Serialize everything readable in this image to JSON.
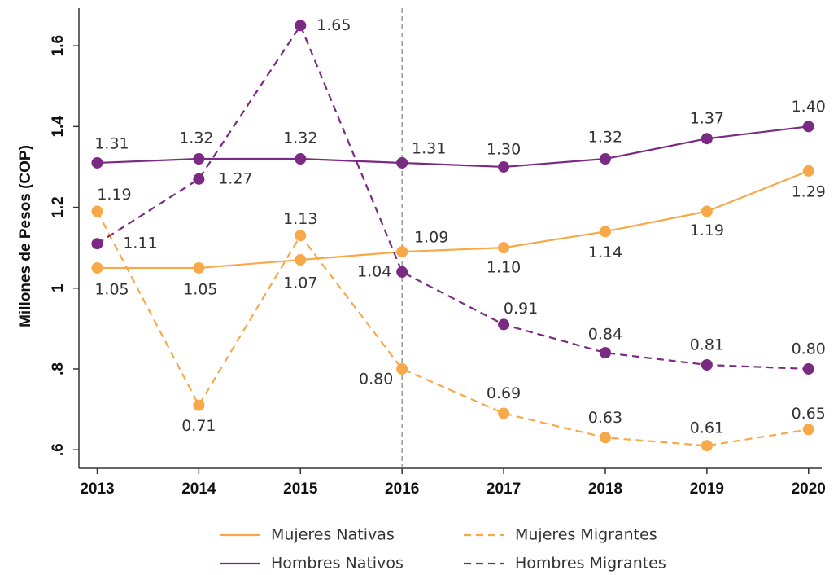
{
  "chart_data": {
    "type": "line",
    "ylabel": "Millones de Pesos (COP)",
    "x": [
      2013,
      2014,
      2015,
      2016,
      2017,
      2018,
      2019,
      2020
    ],
    "xlim": [
      2012.82,
      2020.13
    ],
    "xticks": [
      2013,
      2014,
      2015,
      2016,
      2017,
      2018,
      2019,
      2020
    ],
    "ylim": [
      0.554,
      1.693
    ],
    "yticks": [
      {
        "value": 0.6,
        "label": ".6"
      },
      {
        "value": 0.8,
        "label": ".8"
      },
      1,
      1.2,
      1.4,
      1.6
    ],
    "vline": 2016,
    "legend": "bottom",
    "series": [
      {
        "name": "Mujeres Nativas",
        "color": "#f7a94a",
        "linestyle": "solid",
        "values": [
          1.05,
          1.05,
          1.07,
          1.09,
          1.1,
          1.14,
          1.19,
          1.29
        ],
        "value_labels": [
          "1.05",
          "1.05",
          "1.07",
          "1.09",
          "1.10",
          "1.14",
          "1.19",
          "1.29"
        ]
      },
      {
        "name": "Mujeres Migrantes",
        "color": "#f7a94a",
        "linestyle": "dashed",
        "values": [
          1.19,
          0.71,
          1.13,
          0.8,
          0.69,
          0.63,
          0.61,
          0.65
        ],
        "value_labels": [
          "1.19",
          "0.71",
          "1.13",
          "0.80",
          "0.69",
          "0.63",
          "0.61",
          "0.65"
        ]
      },
      {
        "name": "Hombres Nativos",
        "color": "#7a2a82",
        "linestyle": "solid",
        "values": [
          1.31,
          1.32,
          1.32,
          1.31,
          1.3,
          1.32,
          1.37,
          1.4
        ],
        "value_labels": [
          "1.31",
          "1.32",
          "1.32",
          "1.31",
          "1.30",
          "1.32",
          "1.37",
          "1.40"
        ]
      },
      {
        "name": "Hombres Migrantes",
        "color": "#7a2a82",
        "linestyle": "dashed",
        "values": [
          1.11,
          1.27,
          1.65,
          1.04,
          0.91,
          0.84,
          0.81,
          0.8
        ],
        "value_labels": [
          "1.11",
          "1.27",
          "1.65",
          "1.04",
          "0.91",
          "0.84",
          "0.81",
          "0.80"
        ]
      }
    ]
  }
}
